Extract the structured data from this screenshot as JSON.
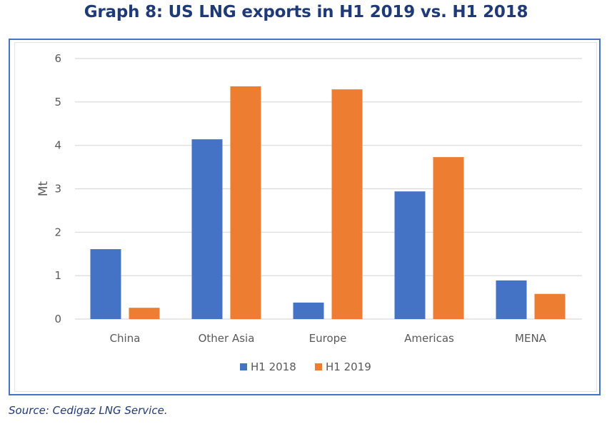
{
  "header": {
    "title": "Graph 8: US LNG exports in H1 2019 vs. H1 2018"
  },
  "footer": {
    "source": "Source: Cedigaz LNG Service."
  },
  "colors": {
    "title": "#1f3a78",
    "frame_border": "#4472c4",
    "h1_2018": "#4472c4",
    "h1_2019": "#ed7d31",
    "gridline": "#d9d9d9",
    "axis_text": "#595959"
  },
  "chart_data": {
    "type": "bar",
    "title": "Graph 8: US LNG exports in H1 2019 vs. H1 2018",
    "xlabel": "",
    "ylabel": "Mt",
    "ylim": [
      0,
      6
    ],
    "yticks": [
      0,
      1,
      2,
      3,
      4,
      5,
      6
    ],
    "grid": true,
    "legend_position": "bottom-center",
    "categories": [
      "China",
      "Other Asia",
      "Europe",
      "Americas",
      "MENA"
    ],
    "series": [
      {
        "name": "H1 2018",
        "color": "#4472c4",
        "values": [
          1.61,
          4.14,
          0.38,
          2.94,
          0.89
        ]
      },
      {
        "name": "H1 2019",
        "color": "#ed7d31",
        "values": [
          0.26,
          5.36,
          5.29,
          3.73,
          0.58
        ]
      }
    ]
  }
}
